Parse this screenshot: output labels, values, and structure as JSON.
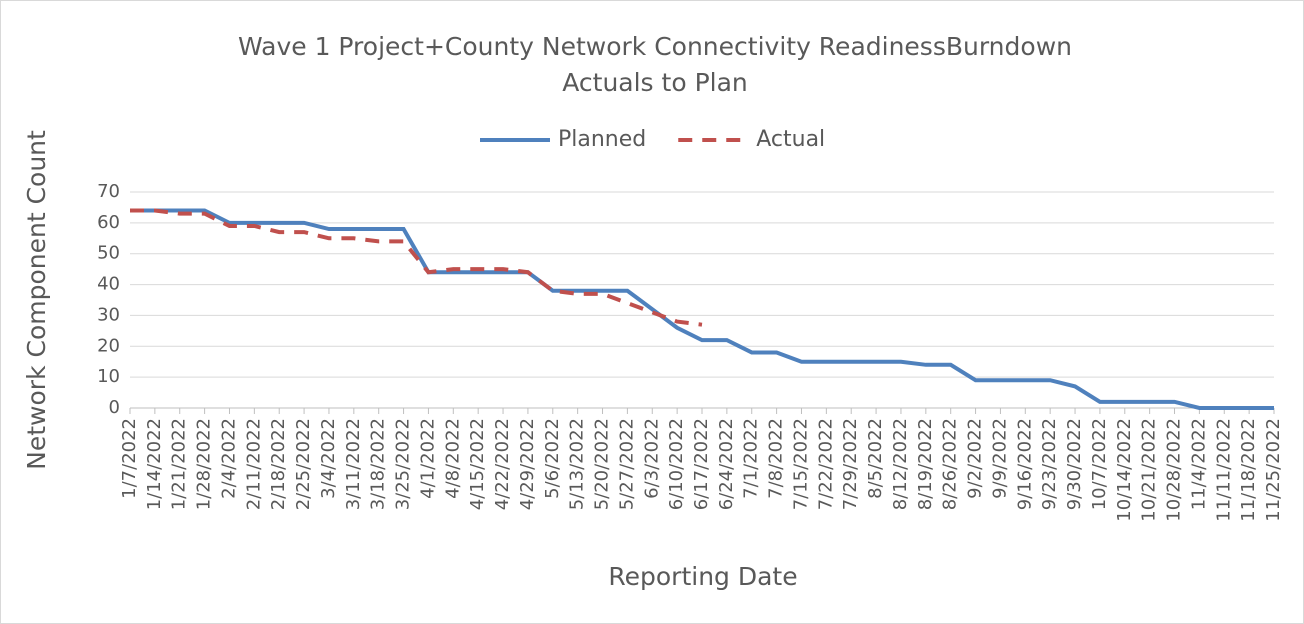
{
  "chart_data": {
    "type": "line",
    "title": [
      "Wave 1 Project+County Network Connectivity ReadinessBurndown",
      "Actuals to Plan"
    ],
    "x_label": "Reporting Date",
    "y_label": "Network Component Count",
    "categories": [
      "1/7/2022",
      "1/14/2022",
      "1/21/2022",
      "1/28/2022",
      "2/4/2022",
      "2/11/2022",
      "2/18/2022",
      "2/25/2022",
      "3/4/2022",
      "3/11/2022",
      "3/18/2022",
      "3/25/2022",
      "4/1/2022",
      "4/8/2022",
      "4/15/2022",
      "4/22/2022",
      "4/29/2022",
      "5/6/2022",
      "5/13/2022",
      "5/20/2022",
      "5/27/2022",
      "6/3/2022",
      "6/10/2022",
      "6/17/2022",
      "6/24/2022",
      "7/1/2022",
      "7/8/2022",
      "7/15/2022",
      "7/22/2022",
      "7/29/2022",
      "8/5/2022",
      "8/12/2022",
      "8/19/2022",
      "8/26/2022",
      "9/2/2022",
      "9/9/2022",
      "9/16/2022",
      "9/23/2022",
      "9/30/2022",
      "10/7/2022",
      "10/14/2022",
      "10/21/2022",
      "10/28/2022",
      "11/4/2022",
      "11/11/2022",
      "11/18/2022",
      "11/25/2022"
    ],
    "series": [
      {
        "name": "Planned",
        "color": "#4f81bd",
        "dash": false,
        "values": [
          64,
          64,
          64,
          64,
          60,
          60,
          60,
          60,
          58,
          58,
          58,
          58,
          44,
          44,
          44,
          44,
          44,
          38,
          38,
          38,
          38,
          32,
          26,
          22,
          22,
          18,
          18,
          15,
          15,
          15,
          15,
          15,
          14,
          14,
          9,
          9,
          9,
          9,
          7,
          2,
          2,
          2,
          2,
          0,
          0,
          0,
          0
        ]
      },
      {
        "name": "Actual",
        "color": "#c0504d",
        "dash": true,
        "values": [
          64,
          64,
          63,
          63,
          59,
          59,
          57,
          57,
          55,
          55,
          54,
          54,
          44,
          45,
          45,
          45,
          44,
          38,
          37,
          37,
          34,
          31,
          28,
          27,
          null,
          null,
          null,
          null,
          null,
          null,
          null,
          null,
          null,
          null,
          null,
          null,
          null,
          null,
          null,
          null,
          null,
          null,
          null,
          null,
          null,
          null,
          null
        ]
      }
    ],
    "ylim": [
      0,
      70
    ],
    "yticks": [
      0,
      10,
      20,
      30,
      40,
      50,
      60,
      70
    ],
    "grid": true,
    "legend": "top"
  }
}
